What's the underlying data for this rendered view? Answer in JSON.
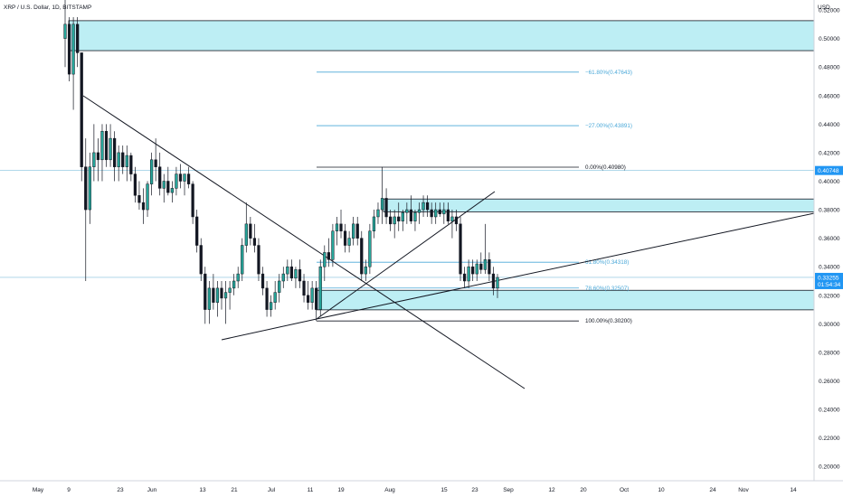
{
  "header": {
    "title": "XRP / U.S. Dollar, 1D, BITSTAMP",
    "currency": "USD"
  },
  "colors": {
    "up": "#26a69a",
    "down": "#131722",
    "zone_fill": "#b2ebf2",
    "fib_line": "#4aa8d8",
    "price_tag": "#2196f3",
    "accent_line": "#1e90c0",
    "trend_line": "#131722",
    "axis_text": "#131722"
  },
  "chart_data": {
    "type": "candlestick",
    "symbol": "XRP/USD",
    "timeframe": "1D",
    "exchange": "BITSTAMP",
    "ylim": [
      0.19,
      0.527
    ],
    "y_ticks": [
      0.52,
      0.5,
      0.48,
      0.46,
      0.44,
      0.42,
      0.4,
      0.38,
      0.36,
      0.34,
      0.32,
      0.3,
      0.28,
      0.26,
      0.24,
      0.22,
      0.2
    ],
    "x_tick_labels": [
      "May",
      "9",
      "23",
      "Jun",
      "13",
      "21",
      "Jul",
      "11",
      "19",
      "Aug",
      "15",
      "23",
      "Sep",
      "12",
      "20",
      "Oct",
      "10",
      "24",
      "Nov",
      "14"
    ],
    "price_tags": [
      {
        "value": 0.40748,
        "text": "0.40748"
      },
      {
        "value": 0.33255,
        "text": "0.33255",
        "sub": "01:54:34"
      }
    ],
    "zones": [
      {
        "from": 0.4915,
        "to": 0.5125
      },
      {
        "from": 0.3785,
        "to": 0.3875
      },
      {
        "from": 0.3098,
        "to": 0.3235
      }
    ],
    "fib_levels": [
      {
        "label": "−61.80%(0.47643)",
        "value": 0.47643
      },
      {
        "label": "−27.00%(0.43891)",
        "value": 0.43891
      },
      {
        "label": "0.00%(0.40980)",
        "value": 0.4098
      },
      {
        "label": "61.80%(0.34318)",
        "value": 0.34318
      },
      {
        "label": "78.60%(0.32507)",
        "value": 0.32507
      },
      {
        "label": "100.00%(0.30200)",
        "value": 0.302
      }
    ],
    "candles": [
      [
        0.5,
        0.54,
        0.48,
        0.51
      ],
      [
        0.51,
        0.515,
        0.47,
        0.475
      ],
      [
        0.475,
        0.515,
        0.45,
        0.51
      ],
      [
        0.51,
        0.515,
        0.48,
        0.49
      ],
      [
        0.49,
        0.49,
        0.4,
        0.41
      ],
      [
        0.41,
        0.43,
        0.33,
        0.38
      ],
      [
        0.38,
        0.42,
        0.37,
        0.41
      ],
      [
        0.41,
        0.44,
        0.4,
        0.42
      ],
      [
        0.42,
        0.43,
        0.4,
        0.415
      ],
      [
        0.415,
        0.44,
        0.4,
        0.435
      ],
      [
        0.435,
        0.44,
        0.41,
        0.415
      ],
      [
        0.415,
        0.44,
        0.41,
        0.43
      ],
      [
        0.43,
        0.435,
        0.4,
        0.41
      ],
      [
        0.41,
        0.425,
        0.4,
        0.42
      ],
      [
        0.42,
        0.425,
        0.405,
        0.41
      ],
      [
        0.41,
        0.425,
        0.4,
        0.418
      ],
      [
        0.418,
        0.42,
        0.4,
        0.405
      ],
      [
        0.405,
        0.41,
        0.385,
        0.39
      ],
      [
        0.39,
        0.4,
        0.38,
        0.385
      ],
      [
        0.385,
        0.395,
        0.37,
        0.38
      ],
      [
        0.38,
        0.4,
        0.375,
        0.398
      ],
      [
        0.398,
        0.42,
        0.39,
        0.415
      ],
      [
        0.415,
        0.43,
        0.4,
        0.41
      ],
      [
        0.41,
        0.42,
        0.39,
        0.395
      ],
      [
        0.395,
        0.405,
        0.385,
        0.4
      ],
      [
        0.4,
        0.41,
        0.39,
        0.392
      ],
      [
        0.392,
        0.4,
        0.385,
        0.395
      ],
      [
        0.395,
        0.41,
        0.39,
        0.405
      ],
      [
        0.405,
        0.412,
        0.395,
        0.4
      ],
      [
        0.4,
        0.405,
        0.39,
        0.405
      ],
      [
        0.405,
        0.41,
        0.395,
        0.398
      ],
      [
        0.398,
        0.4,
        0.37,
        0.375
      ],
      [
        0.375,
        0.38,
        0.35,
        0.355
      ],
      [
        0.355,
        0.36,
        0.33,
        0.335
      ],
      [
        0.335,
        0.34,
        0.3,
        0.31
      ],
      [
        0.31,
        0.33,
        0.3,
        0.325
      ],
      [
        0.325,
        0.335,
        0.31,
        0.315
      ],
      [
        0.315,
        0.33,
        0.305,
        0.325
      ],
      [
        0.325,
        0.33,
        0.31,
        0.318
      ],
      [
        0.318,
        0.33,
        0.3,
        0.322
      ],
      [
        0.322,
        0.33,
        0.31,
        0.325
      ],
      [
        0.325,
        0.335,
        0.32,
        0.33
      ],
      [
        0.33,
        0.34,
        0.325,
        0.335
      ],
      [
        0.335,
        0.36,
        0.33,
        0.355
      ],
      [
        0.355,
        0.385,
        0.35,
        0.37
      ],
      [
        0.37,
        0.375,
        0.355,
        0.36
      ],
      [
        0.36,
        0.37,
        0.35,
        0.355
      ],
      [
        0.355,
        0.36,
        0.33,
        0.335
      ],
      [
        0.335,
        0.34,
        0.32,
        0.325
      ],
      [
        0.325,
        0.33,
        0.305,
        0.31
      ],
      [
        0.31,
        0.32,
        0.305,
        0.315
      ],
      [
        0.315,
        0.33,
        0.31,
        0.322
      ],
      [
        0.322,
        0.335,
        0.315,
        0.33
      ],
      [
        0.33,
        0.34,
        0.325,
        0.335
      ],
      [
        0.335,
        0.345,
        0.33,
        0.34
      ],
      [
        0.34,
        0.345,
        0.33,
        0.332
      ],
      [
        0.332,
        0.34,
        0.325,
        0.338
      ],
      [
        0.338,
        0.345,
        0.325,
        0.33
      ],
      [
        0.33,
        0.335,
        0.315,
        0.32
      ],
      [
        0.32,
        0.33,
        0.31,
        0.315
      ],
      [
        0.315,
        0.33,
        0.31,
        0.325
      ],
      [
        0.325,
        0.33,
        0.302,
        0.31
      ],
      [
        0.31,
        0.345,
        0.305,
        0.34
      ],
      [
        0.34,
        0.355,
        0.33,
        0.35
      ],
      [
        0.35,
        0.36,
        0.34,
        0.345
      ],
      [
        0.345,
        0.37,
        0.34,
        0.365
      ],
      [
        0.365,
        0.375,
        0.355,
        0.37
      ],
      [
        0.37,
        0.38,
        0.36,
        0.365
      ],
      [
        0.365,
        0.37,
        0.35,
        0.355
      ],
      [
        0.355,
        0.365,
        0.35,
        0.36
      ],
      [
        0.36,
        0.375,
        0.355,
        0.37
      ],
      [
        0.37,
        0.375,
        0.355,
        0.36
      ],
      [
        0.36,
        0.365,
        0.33,
        0.335
      ],
      [
        0.335,
        0.345,
        0.33,
        0.34
      ],
      [
        0.34,
        0.37,
        0.335,
        0.365
      ],
      [
        0.365,
        0.38,
        0.36,
        0.375
      ],
      [
        0.375,
        0.385,
        0.37,
        0.38
      ],
      [
        0.38,
        0.41,
        0.37,
        0.388
      ],
      [
        0.388,
        0.395,
        0.37,
        0.375
      ],
      [
        0.375,
        0.38,
        0.365,
        0.37
      ],
      [
        0.37,
        0.38,
        0.36,
        0.375
      ],
      [
        0.375,
        0.385,
        0.365,
        0.372
      ],
      [
        0.372,
        0.38,
        0.365,
        0.378
      ],
      [
        0.378,
        0.385,
        0.37,
        0.38
      ],
      [
        0.38,
        0.39,
        0.37,
        0.372
      ],
      [
        0.372,
        0.38,
        0.365,
        0.378
      ],
      [
        0.378,
        0.385,
        0.37,
        0.38
      ],
      [
        0.38,
        0.39,
        0.375,
        0.385
      ],
      [
        0.385,
        0.39,
        0.375,
        0.38
      ],
      [
        0.38,
        0.385,
        0.37,
        0.375
      ],
      [
        0.375,
        0.385,
        0.37,
        0.38
      ],
      [
        0.38,
        0.385,
        0.375,
        0.377
      ],
      [
        0.377,
        0.385,
        0.37,
        0.38
      ],
      [
        0.38,
        0.385,
        0.37,
        0.372
      ],
      [
        0.372,
        0.38,
        0.36,
        0.375
      ],
      [
        0.375,
        0.38,
        0.365,
        0.37
      ],
      [
        0.37,
        0.375,
        0.33,
        0.335
      ],
      [
        0.335,
        0.34,
        0.325,
        0.33
      ],
      [
        0.33,
        0.345,
        0.325,
        0.34
      ],
      [
        0.34,
        0.345,
        0.33,
        0.335
      ],
      [
        0.335,
        0.345,
        0.33,
        0.342
      ],
      [
        0.342,
        0.35,
        0.335,
        0.338
      ],
      [
        0.338,
        0.37,
        0.335,
        0.345
      ],
      [
        0.345,
        0.35,
        0.33,
        0.335
      ],
      [
        0.335,
        0.34,
        0.32,
        0.325
      ],
      [
        0.325,
        0.335,
        0.318,
        0.3325
      ]
    ]
  }
}
